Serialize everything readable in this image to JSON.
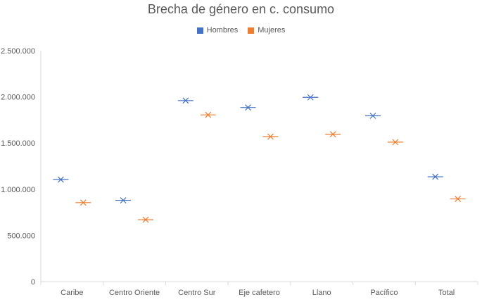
{
  "chart_data": {
    "type": "scatter",
    "title": "Brecha de género en c. consumo",
    "categories": [
      "Caribe",
      "Centro Oriente",
      "Centro Sur",
      "Eje cafetero",
      "Llano",
      "Pacífico",
      "Total"
    ],
    "series": [
      {
        "name": "Hombres",
        "color": "#4472C4",
        "values": [
          1105000,
          880000,
          1960000,
          1885000,
          1995000,
          1795000,
          1135000
        ]
      },
      {
        "name": "Mujeres",
        "color": "#ED7D31",
        "values": [
          855000,
          670000,
          1805000,
          1570000,
          1595000,
          1510000,
          895000
        ]
      }
    ],
    "y_ticks": [
      "0",
      "500.000",
      "1.000.000",
      "1.500.000",
      "2.000.000",
      "2.500.000"
    ],
    "ylim": [
      0,
      2500000
    ],
    "grid": false,
    "legend_position": "top"
  }
}
